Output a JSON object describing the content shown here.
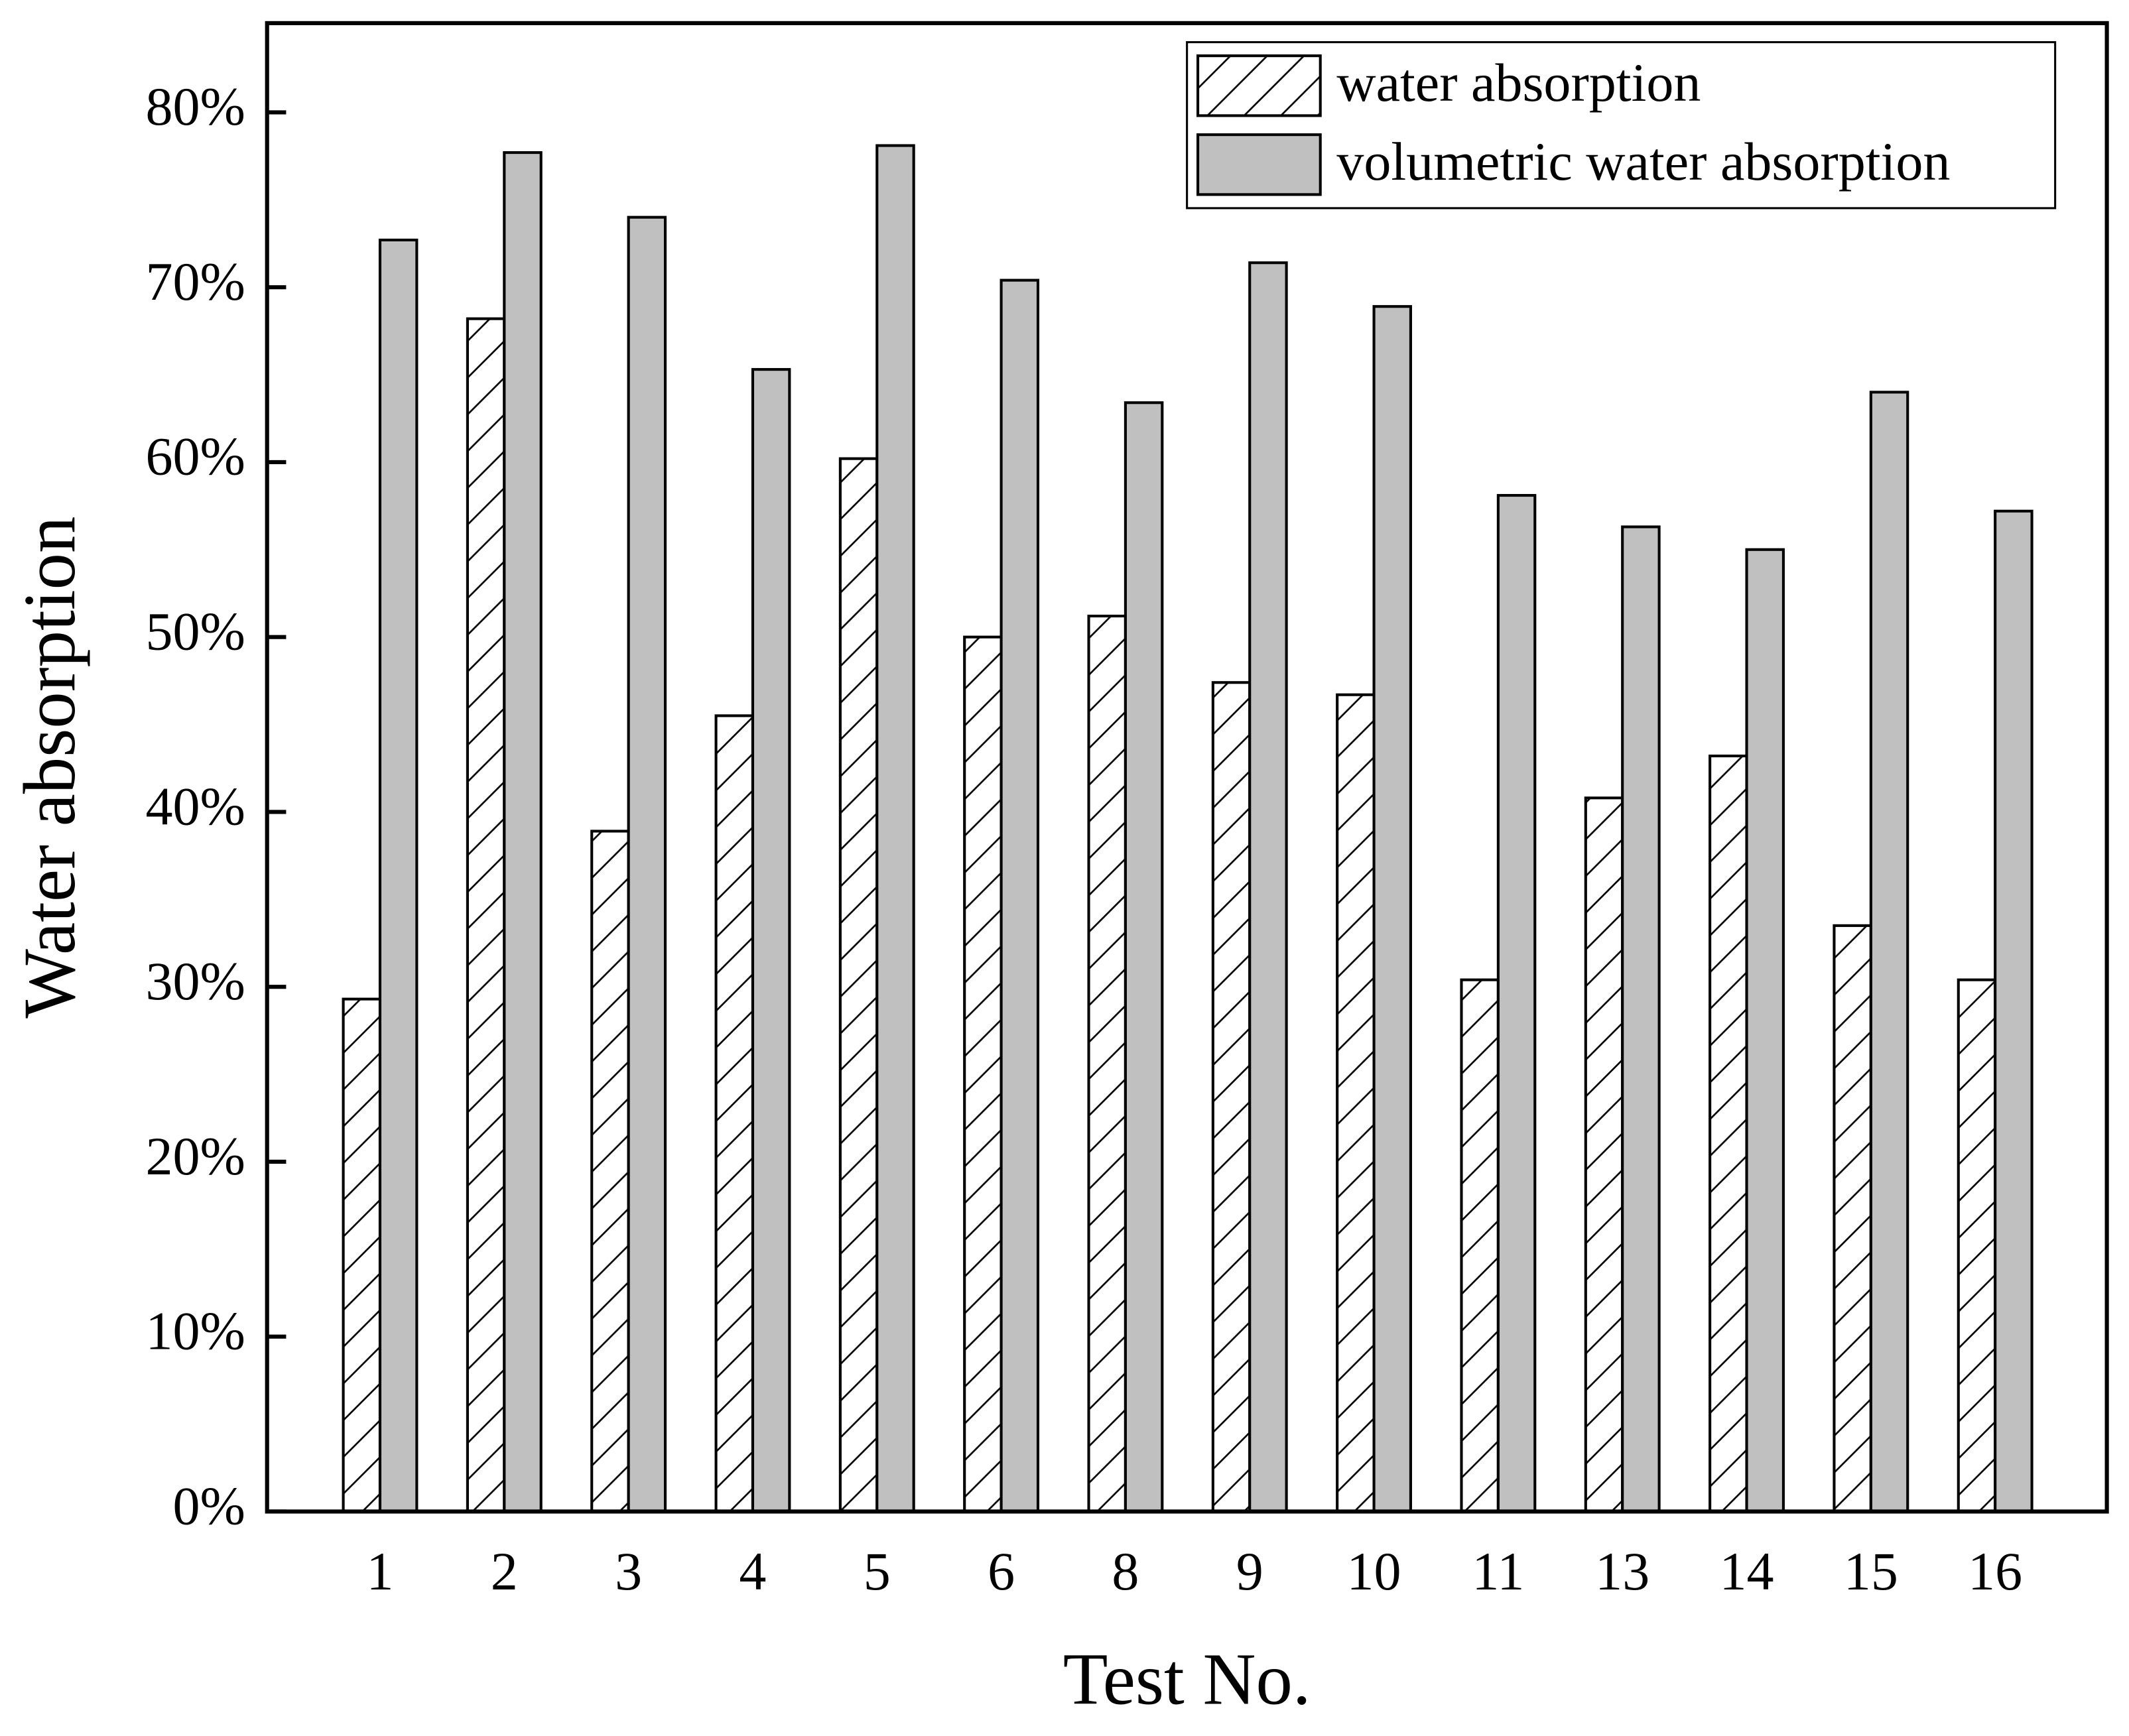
{
  "chart_data": {
    "type": "bar",
    "x_label": "Test No.",
    "y_label": "Water absorption",
    "categories": [
      "1",
      "2",
      "3",
      "4",
      "5",
      "6",
      "8",
      "9",
      "10",
      "11",
      "13",
      "14",
      "15",
      "16"
    ],
    "series": [
      {
        "name": "water absorption",
        "color": "#ffffff",
        "pattern": "hatch",
        "values": [
          29.3,
          68.2,
          38.9,
          45.5,
          60.2,
          50.0,
          51.2,
          47.4,
          46.7,
          30.4,
          40.8,
          43.2,
          33.5,
          30.4
        ]
      },
      {
        "name": "volumetric water absorption",
        "color": "#c0c0c0",
        "values": [
          72.7,
          77.7,
          74.0,
          65.3,
          78.1,
          70.4,
          63.4,
          71.4,
          68.9,
          58.1,
          56.3,
          55.0,
          64.0,
          57.2
        ]
      }
    ],
    "ylim": [
      0,
      85.1
    ],
    "yticks": [
      {
        "value": 0,
        "label": "0%"
      },
      {
        "value": 10,
        "label": "10%"
      },
      {
        "value": 20,
        "label": "20%"
      },
      {
        "value": 30,
        "label": "30%"
      },
      {
        "value": 40,
        "label": "40%"
      },
      {
        "value": 50,
        "label": "50%"
      },
      {
        "value": 60,
        "label": "60%"
      },
      {
        "value": 70,
        "label": "70%"
      },
      {
        "value": 80,
        "label": "80%"
      }
    ],
    "legend": "top-right"
  }
}
